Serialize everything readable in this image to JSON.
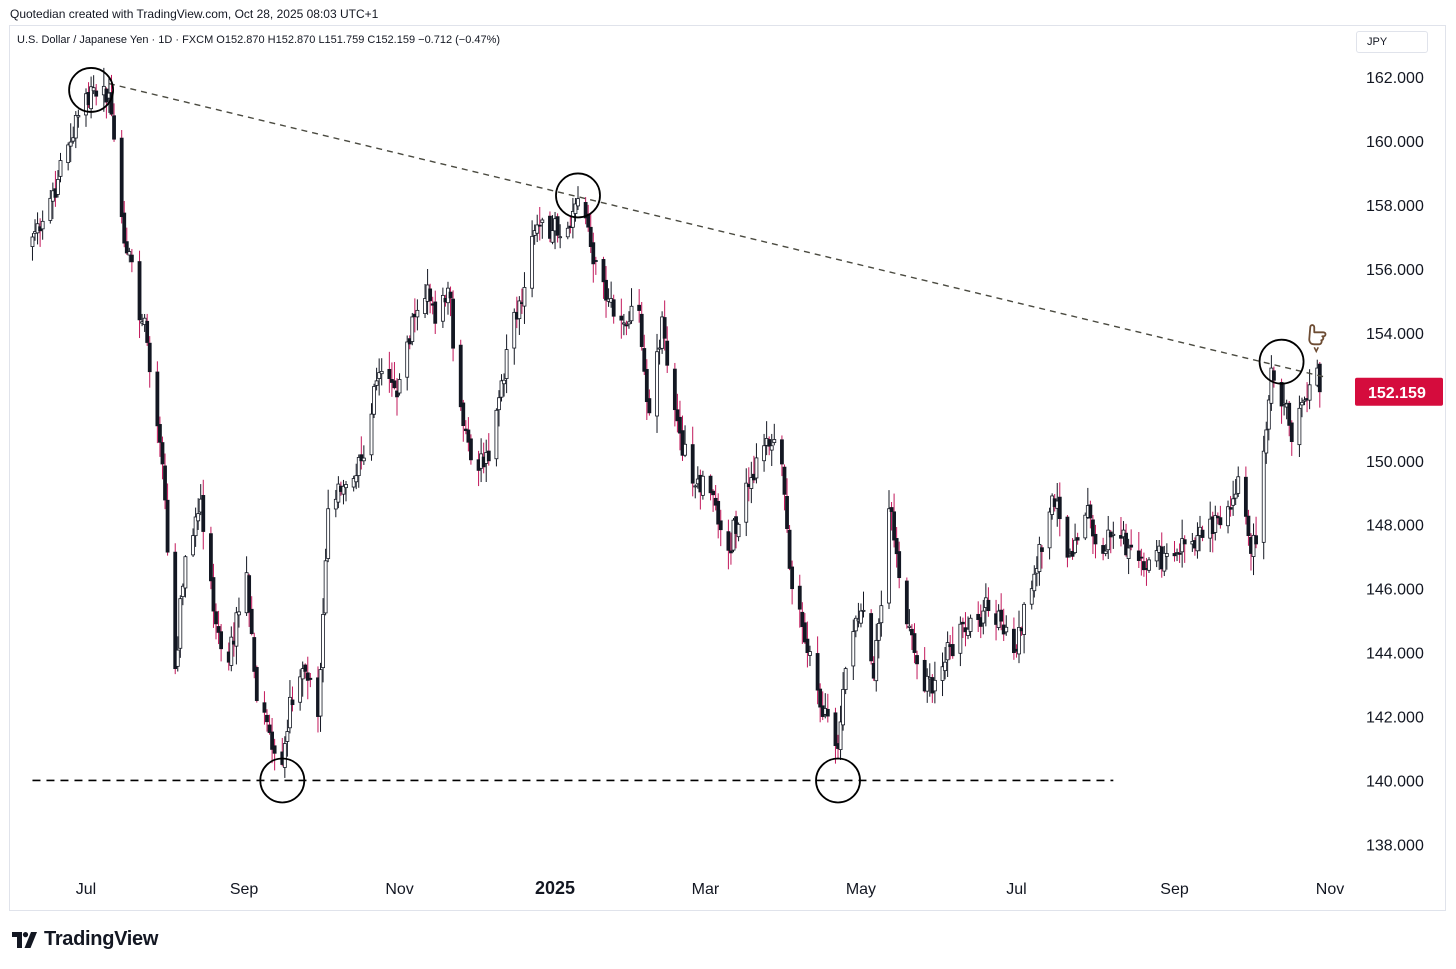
{
  "header": {
    "credit": "Quotedian created with TradingView.com, Oct 28, 2025 08:03 UTC+1",
    "symbol_line": "U.S. Dollar / Japanese Yen · 1D · FXCM  O152.870  H152.870  L151.759  C152.159  −0.712 (−0.47%)",
    "currency": "JPY"
  },
  "footer": {
    "brand": "TradingView"
  },
  "colors": {
    "up_candle_body": "#ffffff",
    "candle_outline": "#131722",
    "down_wick": "#c2185b",
    "price_badge": "#d50c3d",
    "trendline": "#4a4a40",
    "support_line": "#000000"
  },
  "chart_data": {
    "type": "candlestick",
    "title": "",
    "ylim": [
      137.2,
      163.6
    ],
    "y_ticks": [
      "162.000",
      "160.000",
      "158.000",
      "156.000",
      "154.000",
      "150.000",
      "148.000",
      "146.000",
      "144.000",
      "142.000",
      "140.000",
      "138.000"
    ],
    "x_ticks": [
      {
        "label": "Jul",
        "date": "2024-07-01",
        "bold": false
      },
      {
        "label": "Sep",
        "date": "2024-09-01",
        "bold": false
      },
      {
        "label": "Nov",
        "date": "2024-11-01",
        "bold": false
      },
      {
        "label": "2025",
        "date": "2025-01-01",
        "bold": true
      },
      {
        "label": "Mar",
        "date": "2025-03-01",
        "bold": false
      },
      {
        "label": "May",
        "date": "2025-05-01",
        "bold": false
      },
      {
        "label": "Jul",
        "date": "2025-07-01",
        "bold": false
      },
      {
        "label": "Sep",
        "date": "2025-09-01",
        "bold": false
      },
      {
        "label": "Nov",
        "date": "2025-11-01",
        "bold": false
      }
    ],
    "last_price": {
      "value": 152.159,
      "label": "152.159"
    },
    "trendline": {
      "points": [
        {
          "date": "2024-07-10",
          "price": 161.8
        },
        {
          "date": "2025-10-31",
          "price": 152.6
        }
      ],
      "style": "dashed"
    },
    "support_line": {
      "price": 140.0,
      "from": "2024-06-10",
      "to": "2025-08-08",
      "style": "dashed"
    },
    "circled_points": [
      {
        "date": "2024-07-03",
        "price": 161.6
      },
      {
        "date": "2024-09-16",
        "price": 140.0
      },
      {
        "date": "2025-01-10",
        "price": 158.3
      },
      {
        "date": "2025-04-22",
        "price": 140.0
      },
      {
        "date": "2025-10-13",
        "price": 153.1
      }
    ],
    "hand_marker": {
      "date": "2025-10-27",
      "price": 153.8
    },
    "closes": [
      [
        "2024-06-10",
        157.0
      ],
      [
        "2024-06-20",
        158.8
      ],
      [
        "2024-06-28",
        160.8
      ],
      [
        "2024-07-03",
        161.7
      ],
      [
        "2024-07-10",
        161.5
      ],
      [
        "2024-07-17",
        156.5
      ],
      [
        "2024-07-25",
        153.7
      ],
      [
        "2024-07-31",
        149.9
      ],
      [
        "2024-08-05",
        143.5
      ],
      [
        "2024-08-09",
        147.0
      ],
      [
        "2024-08-15",
        148.8
      ],
      [
        "2024-08-20",
        145.3
      ],
      [
        "2024-08-26",
        143.7
      ],
      [
        "2024-09-02",
        146.5
      ],
      [
        "2024-09-06",
        142.5
      ],
      [
        "2024-09-11",
        141.5
      ],
      [
        "2024-09-16",
        140.5
      ],
      [
        "2024-09-19",
        142.6
      ],
      [
        "2024-09-24",
        143.5
      ],
      [
        "2024-09-30",
        142.0
      ],
      [
        "2024-10-04",
        148.5
      ],
      [
        "2024-10-10",
        149.2
      ],
      [
        "2024-10-17",
        150.0
      ],
      [
        "2024-10-23",
        152.5
      ],
      [
        "2024-10-31",
        152.0
      ],
      [
        "2024-11-06",
        154.5
      ],
      [
        "2024-11-12",
        155.5
      ],
      [
        "2024-11-15",
        154.3
      ],
      [
        "2024-11-20",
        155.4
      ],
      [
        "2024-11-26",
        151.1
      ],
      [
        "2024-12-02",
        149.7
      ],
      [
        "2024-12-06",
        150.0
      ],
      [
        "2024-12-11",
        152.5
      ],
      [
        "2024-12-18",
        155.0
      ],
      [
        "2024-12-24",
        157.2
      ],
      [
        "2024-12-31",
        157.2
      ],
      [
        "2025-01-08",
        157.8
      ],
      [
        "2025-01-10",
        158.2
      ],
      [
        "2025-01-15",
        156.7
      ],
      [
        "2025-01-20",
        155.6
      ],
      [
        "2025-01-27",
        154.4
      ],
      [
        "2025-02-03",
        154.7
      ],
      [
        "2025-02-07",
        151.5
      ],
      [
        "2025-02-12",
        154.5
      ],
      [
        "2025-02-17",
        151.6
      ],
      [
        "2025-02-24",
        149.3
      ],
      [
        "2025-03-03",
        149.0
      ],
      [
        "2025-03-10",
        147.2
      ],
      [
        "2025-03-17",
        149.3
      ],
      [
        "2025-03-25",
        150.7
      ],
      [
        "2025-03-31",
        149.9
      ],
      [
        "2025-04-04",
        146.0
      ],
      [
        "2025-04-10",
        144.0
      ],
      [
        "2025-04-16",
        142.0
      ],
      [
        "2025-04-22",
        141.0
      ],
      [
        "2025-04-25",
        143.5
      ],
      [
        "2025-05-01",
        145.3
      ],
      [
        "2025-05-06",
        143.2
      ],
      [
        "2025-05-12",
        148.5
      ],
      [
        "2025-05-19",
        144.9
      ],
      [
        "2025-05-26",
        142.8
      ],
      [
        "2025-06-03",
        143.7
      ],
      [
        "2025-06-10",
        144.9
      ],
      [
        "2025-06-18",
        145.3
      ],
      [
        "2025-06-24",
        145.3
      ],
      [
        "2025-06-30",
        144.0
      ],
      [
        "2025-07-07",
        146.0
      ],
      [
        "2025-07-15",
        148.9
      ],
      [
        "2025-07-22",
        147.1
      ],
      [
        "2025-07-29",
        148.6
      ],
      [
        "2025-08-01",
        147.4
      ],
      [
        "2025-08-08",
        147.7
      ],
      [
        "2025-08-15",
        147.3
      ],
      [
        "2025-08-22",
        146.9
      ],
      [
        "2025-08-29",
        147.1
      ],
      [
        "2025-09-05",
        147.4
      ],
      [
        "2025-09-12",
        147.6
      ],
      [
        "2025-09-19",
        148.0
      ],
      [
        "2025-09-26",
        149.5
      ],
      [
        "2025-10-01",
        147.1
      ],
      [
        "2025-10-03",
        147.4
      ],
      [
        "2025-10-06",
        150.3
      ],
      [
        "2025-10-09",
        152.9
      ],
      [
        "2025-10-14",
        151.8
      ],
      [
        "2025-10-17",
        150.6
      ],
      [
        "2025-10-22",
        151.9
      ],
      [
        "2025-10-27",
        152.9
      ],
      [
        "2025-10-28",
        152.159
      ]
    ]
  }
}
